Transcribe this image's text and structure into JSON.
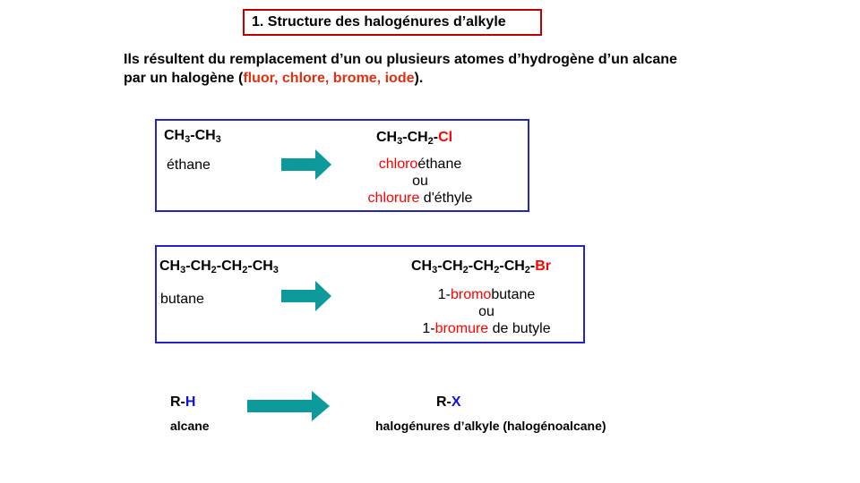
{
  "title": "1. Structure des halogénures d’alkyle",
  "intro": {
    "line1": "Ils résultent du remplacement d’un ou plusieurs atomes d’hydrogène d’un alcane",
    "line2_start": "par un halogène (",
    "halogens": "fluor, chlore, brome, iode",
    "line2_end": ")."
  },
  "example1": {
    "reactant": {
      "p1": "CH",
      "s1": "3",
      "p2": "-CH",
      "s2": "3"
    },
    "reactant_name": "éthane",
    "product": {
      "p1": "CH",
      "s1": "3",
      "p2": "-CH",
      "s2": "2",
      "p3": "-",
      "halogen": "Cl"
    },
    "name1_prefix": "chloro",
    "name1_suffix": "éthane",
    "or": "ou",
    "name2_prefix": "chlorure",
    "name2_suffix": " d'éthyle"
  },
  "example2": {
    "reactant": {
      "p1": "CH",
      "s1": "3",
      "p2": "-CH",
      "s2": "2",
      "p3": "-CH",
      "s3": "2",
      "p4": "-CH",
      "s4": "3"
    },
    "reactant_name": "butane",
    "product": {
      "p1": "CH",
      "s1": "3",
      "p2": "-CH",
      "s2": "2",
      "p3": "-CH",
      "s3": "2",
      "p4": "-CH",
      "s4": "2",
      "p5": "-",
      "halogen": "Br"
    },
    "name1_pre": "1-",
    "name1_mid": "bromo",
    "name1_suf": "butane",
    "or": "ou",
    "name2_pre": "1-",
    "name2_mid": "bromure",
    "name2_suf": " de butyle"
  },
  "general": {
    "reactant_r": "R-",
    "reactant_h": "H",
    "reactant_name": "alcane",
    "product_r": "R-",
    "product_x": "X",
    "product_name": "halogénures d’alkyle (halogénoalcane)"
  },
  "colors": {
    "arrow": "#0d9a9a",
    "title_border": "#c00000",
    "box_border": "#2323c8",
    "halogen_red": "#ff0000",
    "intro_red": "#e03010",
    "general_blue": "#1010e0"
  },
  "icons": {
    "arrow": "right-block-arrow-icon"
  }
}
